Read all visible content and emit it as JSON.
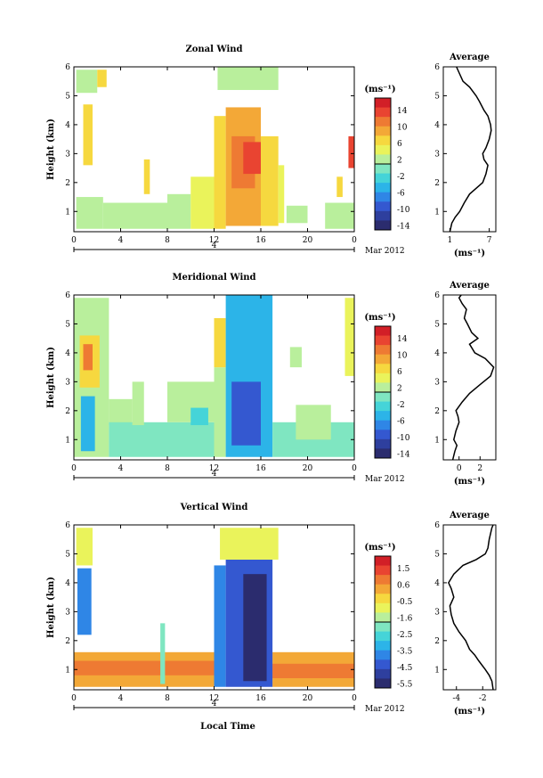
{
  "footer": {
    "xlabel": "Local Time"
  },
  "chart_data": [
    {
      "type": "heatmap",
      "title": "Zonal Wind",
      "ylabel": "Height (km)",
      "x_ticks": [
        "0",
        "4",
        "8",
        "12",
        "16",
        "20",
        "0"
      ],
      "y_ticks": [
        "1",
        "2",
        "3",
        "4",
        "5",
        "6"
      ],
      "date_marker": "4",
      "date_label": "Mar 2012",
      "xlim": [
        0,
        24
      ],
      "ylim": [
        0.3,
        6
      ],
      "colorbar": {
        "unit": "(ms⁻¹)",
        "ticks": [
          "14",
          "10",
          "6",
          "2",
          "-2",
          "-6",
          "-10",
          "-14"
        ],
        "min": -16,
        "max": 16
      },
      "palette": [
        "#2b2c6e",
        "#2e3f9e",
        "#3458d0",
        "#2f86e6",
        "#2cb4e8",
        "#45d4d8",
        "#7fe6c1",
        "#b9ef9c",
        "#eaf35b",
        "#f6d83f",
        "#f3a837",
        "#ee7a33",
        "#e94431",
        "#d21f27"
      ],
      "fill": [
        {
          "x0": 0.2,
          "x1": 2.5,
          "y0": 0.4,
          "y1": 1.5,
          "v": 2
        },
        {
          "x0": 2.5,
          "x1": 8,
          "y0": 0.4,
          "y1": 1.3,
          "v": 1
        },
        {
          "x0": 8,
          "x1": 10,
          "y0": 0.4,
          "y1": 1.6,
          "v": 2
        },
        {
          "x0": 10,
          "x1": 12,
          "y0": 0.4,
          "y1": 2.2,
          "v": 3
        },
        {
          "x0": 12,
          "x1": 13,
          "y0": 0.4,
          "y1": 4.3,
          "v": 5
        },
        {
          "x0": 13,
          "x1": 16,
          "y0": 0.5,
          "y1": 4.6,
          "v": 7
        },
        {
          "x0": 13.5,
          "x1": 15.5,
          "y0": 1.8,
          "y1": 3.6,
          "v": 10
        },
        {
          "x0": 14.5,
          "x1": 16.5,
          "y0": 2.3,
          "y1": 3.4,
          "v": 12
        },
        {
          "x0": 16,
          "x1": 17.5,
          "y0": 0.5,
          "y1": 3.6,
          "v": 6
        },
        {
          "x0": 17.5,
          "x1": 18,
          "y0": 0.6,
          "y1": 2.6,
          "v": 3
        },
        {
          "x0": 12.3,
          "x1": 17.5,
          "y0": 5.2,
          "y1": 6,
          "v": 2
        },
        {
          "x0": 0.2,
          "x1": 2,
          "y0": 5.1,
          "y1": 5.9,
          "v": 2
        },
        {
          "x0": 2,
          "x1": 2.8,
          "y0": 5.3,
          "y1": 5.9,
          "v": 6
        },
        {
          "x0": 0.8,
          "x1": 1.6,
          "y0": 2.6,
          "y1": 4.7,
          "v": 5
        },
        {
          "x0": 6,
          "x1": 6.5,
          "y0": 1.6,
          "y1": 2.8,
          "v": 6
        },
        {
          "x0": 18.2,
          "x1": 20,
          "y0": 0.6,
          "y1": 1.2,
          "v": 1
        },
        {
          "x0": 21.5,
          "x1": 24,
          "y0": 0.4,
          "y1": 1.3,
          "v": 1
        },
        {
          "x0": 23.5,
          "x1": 24,
          "y0": 2.5,
          "y1": 3.6,
          "v": 12
        },
        {
          "x0": 22.5,
          "x1": 23,
          "y0": 1.5,
          "y1": 2.2,
          "v": 5
        }
      ],
      "profile": {
        "xticks": [
          "1",
          "7"
        ],
        "xlim": [
          0,
          8
        ],
        "x": [
          1.0,
          1.3,
          1.8,
          2.5,
          3.2,
          4.0,
          5.0,
          6.0,
          6.5,
          6.8,
          6.2,
          6.0,
          6.5,
          7.0,
          7.3,
          7.2,
          6.8,
          6.2,
          5.5,
          5.0,
          4.0,
          3.0,
          2.4,
          2.0
        ],
        "y": [
          0.3,
          0.6,
          0.8,
          1.0,
          1.3,
          1.6,
          1.8,
          2.0,
          2.3,
          2.6,
          2.8,
          3.0,
          3.2,
          3.5,
          3.8,
          4.0,
          4.3,
          4.5,
          4.8,
          5.0,
          5.3,
          5.5,
          5.8,
          6.0
        ]
      }
    },
    {
      "type": "heatmap",
      "title": "Meridional Wind",
      "ylabel": "Height (km)",
      "x_ticks": [
        "0",
        "4",
        "8",
        "12",
        "16",
        "20",
        "0"
      ],
      "y_ticks": [
        "1",
        "2",
        "3",
        "4",
        "5",
        "6"
      ],
      "date_marker": "4",
      "date_label": "Mar 2012",
      "xlim": [
        0,
        24
      ],
      "ylim": [
        0.3,
        6
      ],
      "colorbar": {
        "unit": "(ms⁻¹)",
        "ticks": [
          "14",
          "10",
          "6",
          "2",
          "-2",
          "-6",
          "-10",
          "-14"
        ],
        "min": -16,
        "max": 16
      },
      "palette": [
        "#2b2c6e",
        "#2e3f9e",
        "#3458d0",
        "#2f86e6",
        "#2cb4e8",
        "#45d4d8",
        "#7fe6c1",
        "#b9ef9c",
        "#eaf35b",
        "#f6d83f",
        "#f3a837",
        "#ee7a33",
        "#e94431",
        "#d21f27"
      ],
      "fill": [
        {
          "x0": 0,
          "x1": 3,
          "y0": 0.4,
          "y1": 5.9,
          "v": 2
        },
        {
          "x0": 0.5,
          "x1": 2.2,
          "y0": 2.8,
          "y1": 4.6,
          "v": 6
        },
        {
          "x0": 0.8,
          "x1": 1.6,
          "y0": 3.4,
          "y1": 4.3,
          "v": 10
        },
        {
          "x0": 0.6,
          "x1": 1.8,
          "y0": 0.6,
          "y1": 2.5,
          "v": -6
        },
        {
          "x0": 3,
          "x1": 5,
          "y0": 1.5,
          "y1": 2.4,
          "v": 2
        },
        {
          "x0": 3,
          "x1": 12,
          "y0": 0.4,
          "y1": 1.6,
          "v": -2
        },
        {
          "x0": 5,
          "x1": 6,
          "y0": 1.5,
          "y1": 3.0,
          "v": 0
        },
        {
          "x0": 8,
          "x1": 12,
          "y0": 1.6,
          "y1": 3.0,
          "v": 2
        },
        {
          "x0": 10,
          "x1": 11.5,
          "y0": 1.5,
          "y1": 2.1,
          "v": -4
        },
        {
          "x0": 12,
          "x1": 13,
          "y0": 0.4,
          "y1": 3.5,
          "v": 2
        },
        {
          "x0": 12,
          "x1": 13,
          "y0": 3.5,
          "y1": 5.2,
          "v": 6
        },
        {
          "x0": 13,
          "x1": 17,
          "y0": 0.4,
          "y1": 6,
          "v": -6
        },
        {
          "x0": 13.5,
          "x1": 16,
          "y0": 0.8,
          "y1": 3.0,
          "v": -10
        },
        {
          "x0": 17,
          "x1": 24,
          "y0": 0.4,
          "y1": 1.6,
          "v": -2
        },
        {
          "x0": 19,
          "x1": 22,
          "y0": 1.0,
          "y1": 2.2,
          "v": 0
        },
        {
          "x0": 23.2,
          "x1": 24,
          "y0": 3.2,
          "y1": 5.9,
          "v": 4
        },
        {
          "x0": 18.5,
          "x1": 19.5,
          "y0": 3.5,
          "y1": 4.2,
          "v": 2
        }
      ],
      "profile": {
        "xticks": [
          "0",
          "2"
        ],
        "xlim": [
          -1.5,
          3.5
        ],
        "x": [
          -0.6,
          -0.4,
          -0.2,
          -0.5,
          -0.3,
          0.0,
          -0.1,
          -0.3,
          0.3,
          1.0,
          2.0,
          3.0,
          3.3,
          2.5,
          1.5,
          1.0,
          1.8,
          1.2,
          0.8,
          0.5,
          0.7,
          0.3,
          0.0,
          0.2
        ],
        "y": [
          0.3,
          0.6,
          0.8,
          1.0,
          1.3,
          1.6,
          1.8,
          2.0,
          2.3,
          2.6,
          2.9,
          3.2,
          3.5,
          3.8,
          4.0,
          4.3,
          4.5,
          4.7,
          5.0,
          5.2,
          5.5,
          5.7,
          5.9,
          6.0
        ]
      }
    },
    {
      "type": "heatmap",
      "title": "Vertical Wind",
      "ylabel": "Height (km)",
      "x_ticks": [
        "0",
        "4",
        "8",
        "12",
        "16",
        "20",
        "0"
      ],
      "y_ticks": [
        "1",
        "2",
        "3",
        "4",
        "5",
        "6"
      ],
      "date_marker": "4",
      "date_label": "Mar 2012",
      "xlim": [
        0,
        24
      ],
      "ylim": [
        0.3,
        6
      ],
      "colorbar": {
        "unit": "(ms⁻¹)",
        "ticks": [
          "1.5",
          "0.6",
          "-0.5",
          "-1.6",
          "-2.5",
          "-3.5",
          "-4.5",
          "-5.5"
        ],
        "min": -6,
        "max": 2
      },
      "palette": [
        "#2b2c6e",
        "#2e3f9e",
        "#3458d0",
        "#2f86e6",
        "#2cb4e8",
        "#45d4d8",
        "#7fe6c1",
        "#b9ef9c",
        "#eaf35b",
        "#f6d83f",
        "#f3a837",
        "#ee7a33",
        "#e94431",
        "#d21f27"
      ],
      "fill": [
        {
          "x0": 0,
          "x1": 12,
          "y0": 0.4,
          "y1": 1.6,
          "v": 0.2
        },
        {
          "x0": 0,
          "x1": 12,
          "y0": 0.8,
          "y1": 1.3,
          "v": 0.6
        },
        {
          "x0": 17,
          "x1": 24,
          "y0": 0.4,
          "y1": 1.6,
          "v": 0.2
        },
        {
          "x0": 17,
          "x1": 24,
          "y0": 0.7,
          "y1": 1.2,
          "v": 0.6
        },
        {
          "x0": 12,
          "x1": 13,
          "y0": 0.4,
          "y1": 4.6,
          "v": -4.0
        },
        {
          "x0": 13,
          "x1": 17,
          "y0": 0.4,
          "y1": 4.8,
          "v": -4.8
        },
        {
          "x0": 14.5,
          "x1": 16.5,
          "y0": 0.6,
          "y1": 4.3,
          "v": -5.5
        },
        {
          "x0": 12.5,
          "x1": 17.5,
          "y0": 4.8,
          "y1": 5.9,
          "v": -1.0
        },
        {
          "x0": 0.2,
          "x1": 1.6,
          "y0": 4.6,
          "y1": 5.9,
          "v": -1.2
        },
        {
          "x0": 0.3,
          "x1": 1.5,
          "y0": 2.2,
          "y1": 4.5,
          "v": -4.0
        },
        {
          "x0": 7.4,
          "x1": 7.8,
          "y0": 0.5,
          "y1": 2.6,
          "v": -2.2
        }
      ],
      "profile": {
        "xticks": [
          "-4",
          "-2"
        ],
        "xlim": [
          -5,
          -1
        ],
        "x": [
          -1.2,
          -1.3,
          -1.5,
          -1.8,
          -2.3,
          -2.6,
          -3.0,
          -3.3,
          -3.8,
          -4.2,
          -4.4,
          -4.5,
          -4.2,
          -4.4,
          -4.6,
          -4.2,
          -3.5,
          -2.5,
          -1.8,
          -1.6,
          -1.5,
          -1.4,
          -1.3,
          -1.2
        ],
        "y": [
          0.3,
          0.6,
          0.8,
          1.0,
          1.3,
          1.5,
          1.7,
          2.0,
          2.3,
          2.6,
          2.9,
          3.2,
          3.5,
          3.8,
          4.0,
          4.3,
          4.6,
          4.8,
          5.0,
          5.2,
          5.5,
          5.7,
          5.9,
          6.0
        ]
      }
    }
  ]
}
